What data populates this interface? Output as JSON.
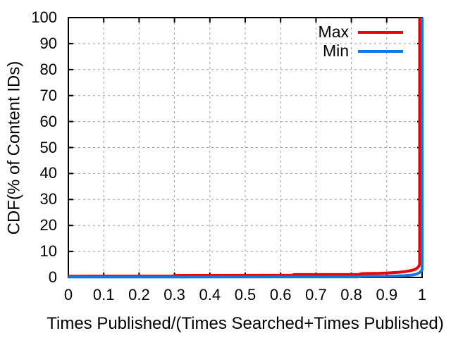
{
  "chart_data": {
    "type": "line",
    "title": "",
    "xlabel": "Times Published/(Times Searched+Times Published)",
    "ylabel": "CDF(% of Content IDs)",
    "xlim": [
      0,
      1
    ],
    "ylim": [
      0,
      100
    ],
    "grid": true,
    "legend_position": "top-right-inside",
    "background": "#ffffff",
    "axis_color": "#000000",
    "grid_color": "#9c9c9c",
    "xticks": {
      "values": [
        0,
        0.1,
        0.2,
        0.3,
        0.4,
        0.5,
        0.6,
        0.7,
        0.8,
        0.9,
        1
      ],
      "labels": [
        "0",
        "0.1",
        "0.2",
        "0.3",
        "0.4",
        "0.5",
        "0.6",
        "0.7",
        "0.8",
        "0.9",
        "1"
      ]
    },
    "yticks": {
      "values": [
        0,
        10,
        20,
        30,
        40,
        50,
        60,
        70,
        80,
        90,
        100
      ],
      "labels": [
        "0",
        "10",
        "20",
        "30",
        "40",
        "50",
        "60",
        "70",
        "80",
        "90",
        "100"
      ]
    },
    "series": [
      {
        "name": "Max",
        "color": "#ee0000",
        "points": [
          [
            0,
            0.5
          ],
          [
            0.295,
            0.55
          ],
          [
            0.305,
            0.8
          ],
          [
            0.63,
            0.85
          ],
          [
            0.64,
            1.1
          ],
          [
            0.82,
            1.15
          ],
          [
            0.83,
            1.5
          ],
          [
            0.88,
            1.6
          ],
          [
            0.91,
            1.8
          ],
          [
            0.935,
            2.0
          ],
          [
            0.955,
            2.3
          ],
          [
            0.97,
            2.7
          ],
          [
            0.98,
            3.1
          ],
          [
            0.987,
            3.7
          ],
          [
            0.991,
            4.4
          ],
          [
            0.993,
            5.2
          ],
          [
            0.993,
            100
          ]
        ]
      },
      {
        "name": "Min",
        "color": "#0c7ae0",
        "points": [
          [
            0,
            0.15
          ],
          [
            0.55,
            0.18
          ],
          [
            0.82,
            0.2
          ],
          [
            0.83,
            0.4
          ],
          [
            0.9,
            0.45
          ],
          [
            0.92,
            0.55
          ],
          [
            0.95,
            0.7
          ],
          [
            0.965,
            0.85
          ],
          [
            0.975,
            1.0
          ],
          [
            0.985,
            1.3
          ],
          [
            0.991,
            1.7
          ],
          [
            0.996,
            2.2
          ],
          [
            1.0,
            3.0
          ],
          [
            1.0,
            100
          ]
        ]
      }
    ]
  }
}
